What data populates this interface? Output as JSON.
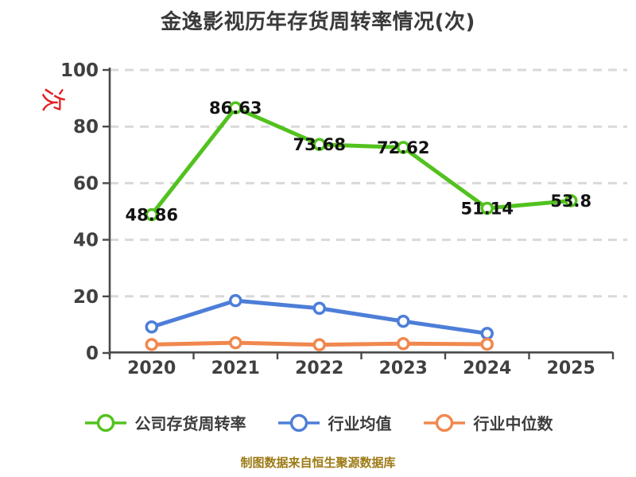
{
  "title": "金逸影视历年存货周转率情况(次)",
  "y_axis_unit": "次",
  "footer": "制图数据来自恒生聚源数据库",
  "colors": {
    "company": "#52c21e",
    "industry_avg": "#4d7ed8",
    "industry_median": "#f0884e",
    "grid": "#d9d9d9",
    "axis": "#4a4a4a",
    "tick_label": "#404040",
    "data_label": "#121212",
    "unit_label": "#e02020",
    "footer_text": "#9c7a14",
    "title_text": "#3a3a3a"
  },
  "legend": {
    "items": [
      {
        "label": "公司存货周转率",
        "color": "#52c21e"
      },
      {
        "label": "行业均值",
        "color": "#4d7ed8"
      },
      {
        "label": "行业中位数",
        "color": "#f0884e"
      }
    ]
  },
  "chart_data": {
    "type": "line",
    "title": "金逸影视历年存货周转率情况(次)",
    "y_unit": "次",
    "categories": [
      "2020",
      "2021",
      "2022",
      "2023",
      "2024",
      "2025"
    ],
    "ylim": [
      0,
      100
    ],
    "yticks": [
      0,
      20,
      40,
      60,
      80,
      100
    ],
    "grid": "horizontal-dashed",
    "legend_position": "bottom",
    "series": [
      {
        "key": "company",
        "name": "公司存货周转率",
        "color": "#52c21e",
        "values": [
          48.86,
          86.63,
          73.68,
          72.62,
          51.14,
          53.8
        ],
        "labels": [
          "48.86",
          "86.63",
          "73.68",
          "72.62",
          "51.14",
          "53.8"
        ],
        "show_labels": true
      },
      {
        "key": "industry-avg",
        "name": "行业均值",
        "color": "#4d7ed8",
        "values": [
          9.2,
          18.5,
          15.8,
          11.2,
          6.9
        ],
        "labels": [],
        "show_labels": false
      },
      {
        "key": "industry-median",
        "name": "行业中位数",
        "color": "#f0884e",
        "values": [
          3.0,
          3.6,
          2.9,
          3.3,
          3.1
        ],
        "labels": [],
        "show_labels": false
      }
    ]
  }
}
